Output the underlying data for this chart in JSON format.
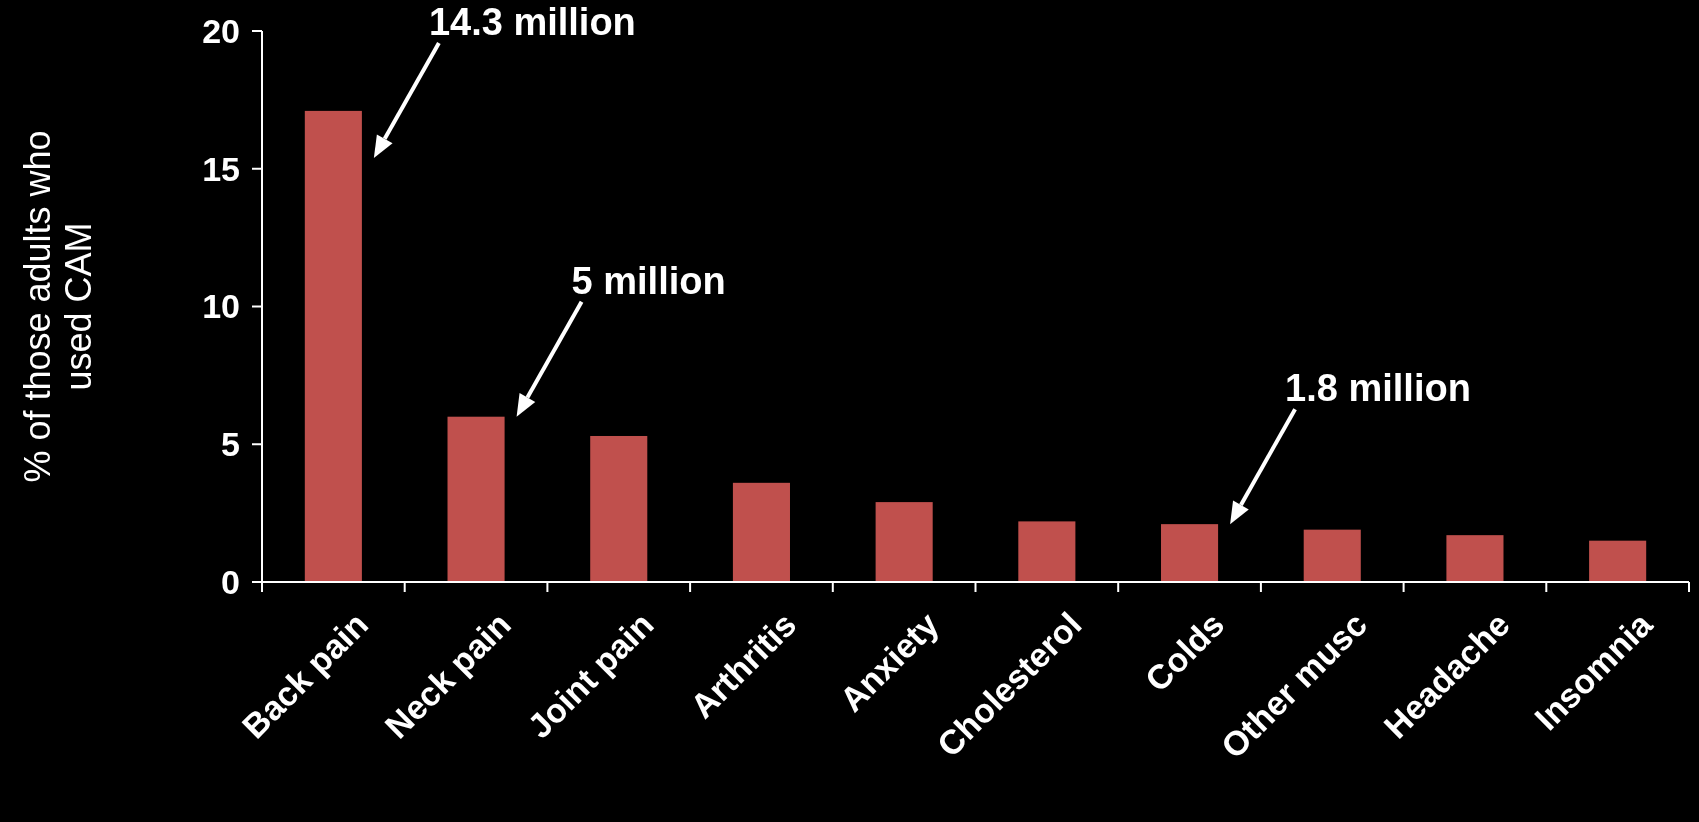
{
  "chart_data": {
    "type": "bar",
    "ylabel": "% of those adults who used CAM",
    "categories": [
      "Back pain",
      "Neck pain",
      "Joint pain",
      "Arthritis",
      "Anxiety",
      "Cholesterol",
      "Colds",
      "Other musc",
      "Headache",
      "Insomnia"
    ],
    "values": [
      17.1,
      6.0,
      5.3,
      3.6,
      2.9,
      2.2,
      2.1,
      1.9,
      1.7,
      1.5
    ],
    "color": "#c0504d",
    "ylim": [
      0,
      20
    ],
    "yticks": [
      0,
      5,
      10,
      15,
      20
    ],
    "grid": false,
    "annotations": [
      "14.3 million",
      "5 million",
      "1.8 million"
    ]
  }
}
